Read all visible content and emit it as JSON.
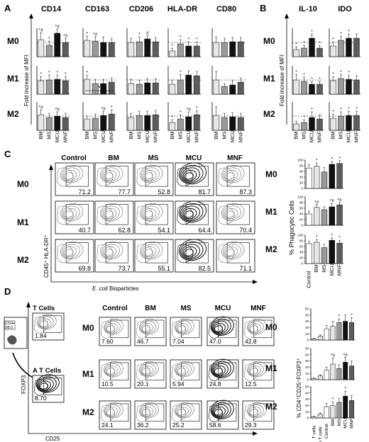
{
  "panel_letters": {
    "A": "A",
    "B": "B",
    "C": "C",
    "D": "D"
  },
  "colors": {
    "bar_light": "#e6e6e6",
    "bar_mid": "#9a9a9a",
    "bar_dark": "#4a4a4a",
    "bar_black": "#111111",
    "bar_dgray": "#5c5c5c",
    "axis": "#000000",
    "flow": "#333333"
  },
  "conditions": [
    "M0",
    "M1",
    "M2"
  ],
  "groups_AB": [
    "BM",
    "MS",
    "MCU",
    "MNF"
  ],
  "panelA": {
    "ylabel": "Fold increase of MFI",
    "markers": [
      "CD14",
      "CD163",
      "CD206",
      "HLA-DR",
      "CD80"
    ],
    "chart_data": {
      "type": "bar",
      "categories": [
        "BM",
        "MS",
        "MCU",
        "MNF"
      ],
      "ylim": [
        0,
        2
      ],
      "series": [
        {
          "marker": "CD14",
          "condition": "M0",
          "values": [
            1.2,
            0.8,
            1.65,
            1.0
          ],
          "errors": [
            0.5,
            0.3,
            0.3,
            0.3
          ],
          "annotations": [
            "*#",
            "*",
            "*#",
            "*#"
          ]
        },
        {
          "marker": "CD163",
          "condition": "M0",
          "values": [
            1.15,
            1.1,
            1.0,
            1.0
          ],
          "errors": [
            0.3,
            0.3,
            0.4,
            0.3
          ],
          "annotations": [
            "*",
            "*#",
            "",
            ""
          ]
        },
        {
          "marker": "CD206",
          "condition": "M0",
          "values": [
            1.0,
            1.05,
            1.25,
            1.05
          ],
          "errors": [
            0.3,
            0.35,
            0.25,
            0.3
          ],
          "annotations": [
            "",
            "*",
            "#",
            ""
          ]
        },
        {
          "marker": "HLA-DR",
          "condition": "M0",
          "values": [
            0.4,
            0.9,
            0.75,
            0.75
          ],
          "errors": [
            0.2,
            0.3,
            0.3,
            0.3
          ],
          "annotations": [
            "*",
            "*",
            "*",
            "*"
          ]
        },
        {
          "marker": "CD80",
          "condition": "M0",
          "values": [
            1.0,
            1.0,
            1.05,
            1.05
          ],
          "errors": [
            0.4,
            0.3,
            0.3,
            0.3
          ],
          "annotations": [
            "",
            "",
            "",
            ""
          ]
        },
        {
          "marker": "CD14",
          "condition": "M1",
          "values": [
            0.95,
            1.0,
            1.05,
            0.95
          ],
          "errors": [
            0.3,
            0.35,
            0.3,
            0.3
          ],
          "annotations": [
            "*",
            "*",
            "*",
            "*"
          ]
        },
        {
          "marker": "CD163",
          "condition": "M1",
          "values": [
            1.05,
            0.75,
            0.75,
            0.85
          ],
          "errors": [
            0.3,
            0.3,
            0.3,
            0.3
          ],
          "annotations": [
            "*",
            "",
            "",
            ""
          ]
        },
        {
          "marker": "CD206",
          "condition": "M1",
          "values": [
            0.75,
            0.7,
            0.8,
            0.8
          ],
          "errors": [
            0.3,
            0.3,
            0.3,
            0.3
          ],
          "annotations": [
            "",
            "",
            "",
            ""
          ]
        },
        {
          "marker": "HLA-DR",
          "condition": "M1",
          "values": [
            0.7,
            1.0,
            1.35,
            1.3
          ],
          "errors": [
            0.3,
            0.4,
            0.3,
            0.3
          ],
          "annotations": [
            "",
            "*",
            "",
            ""
          ]
        },
        {
          "marker": "CD80",
          "condition": "M1",
          "values": [
            1.0,
            0.55,
            0.65,
            0.85
          ],
          "errors": [
            0.6,
            0.2,
            0.3,
            0.3
          ],
          "annotations": [
            "",
            "",
            "",
            ""
          ]
        },
        {
          "marker": "CD14",
          "condition": "M2",
          "values": [
            1.1,
            0.9,
            1.0,
            0.9
          ],
          "errors": [
            0.35,
            0.3,
            0.3,
            0.3
          ],
          "annotations": [
            "*#",
            "",
            "*#",
            ""
          ]
        },
        {
          "marker": "CD163",
          "condition": "M2",
          "values": [
            0.8,
            0.85,
            1.05,
            1.15
          ],
          "errors": [
            0.2,
            0.3,
            0.3,
            0.3
          ],
          "annotations": [
            "",
            "",
            "*#",
            "*"
          ]
        },
        {
          "marker": "CD206",
          "condition": "M2",
          "values": [
            0.9,
            1.05,
            1.05,
            1.1
          ],
          "errors": [
            0.3,
            0.3,
            0.3,
            0.3
          ],
          "annotations": [
            "",
            "",
            "",
            ""
          ]
        },
        {
          "marker": "HLA-DR",
          "condition": "M2",
          "values": [
            0.55,
            0.8,
            0.95,
            1.1
          ],
          "errors": [
            0.2,
            0.3,
            0.35,
            0.3
          ],
          "annotations": [
            "*",
            "*",
            "*#",
            "*"
          ]
        },
        {
          "marker": "CD80",
          "condition": "M2",
          "values": [
            1.05,
            0.9,
            0.95,
            0.9
          ],
          "errors": [
            0.6,
            0.3,
            0.3,
            0.3
          ],
          "annotations": [
            "",
            "",
            "",
            ""
          ]
        }
      ]
    }
  },
  "panelB": {
    "ylabel": "Fold increase of MFI",
    "markers": [
      "IL-10",
      "IDO"
    ],
    "chart_data": {
      "type": "bar",
      "categories": [
        "BM",
        "MS",
        "MCU",
        "MNF"
      ],
      "ylim": [
        0,
        2
      ],
      "series": [
        {
          "marker": "IL-10",
          "condition": "M0",
          "values": [
            0.5,
            0.6,
            1.3,
            0.6
          ],
          "errors": [
            0.2,
            0.2,
            0.3,
            0.2
          ],
          "annotations": [
            "*",
            "*",
            "*",
            "*"
          ]
        },
        {
          "marker": "IDO",
          "condition": "M0",
          "values": [
            0.75,
            1.15,
            1.3,
            1.3
          ],
          "errors": [
            0.3,
            0.3,
            0.3,
            0.3
          ],
          "annotations": [
            "*",
            "*",
            "*",
            ""
          ]
        },
        {
          "marker": "IL-10",
          "condition": "M1",
          "values": [
            1.0,
            0.9,
            0.7,
            0.7
          ],
          "errors": [
            0.4,
            0.3,
            0.2,
            0.2
          ],
          "annotations": [
            "*",
            "*",
            "*",
            "*"
          ]
        },
        {
          "marker": "IDO",
          "condition": "M1",
          "values": [
            0.95,
            1.1,
            1.05,
            1.0
          ],
          "errors": [
            0.3,
            0.3,
            0.3,
            0.3
          ],
          "annotations": [
            "*",
            "*",
            "*",
            ""
          ]
        },
        {
          "marker": "IL-10",
          "condition": "M2",
          "values": [
            0.45,
            0.55,
            0.9,
            0.8
          ],
          "errors": [
            0.2,
            0.2,
            0.4,
            0.3
          ],
          "annotations": [
            "",
            "*",
            "*",
            ""
          ]
        },
        {
          "marker": "IDO",
          "condition": "M2",
          "values": [
            0.85,
            1.0,
            1.05,
            1.05
          ],
          "errors": [
            0.3,
            0.3,
            0.3,
            0.3
          ],
          "annotations": [
            "*",
            "*",
            "*",
            "*"
          ]
        }
      ]
    }
  },
  "panelC": {
    "columns": [
      "Control",
      "BM",
      "MS",
      "MCU",
      "MNF"
    ],
    "percentages": [
      [
        "71.2",
        "77.7",
        "52.8",
        "81.7",
        "87.3"
      ],
      [
        "40.7",
        "62.8",
        "54.1",
        "64.4",
        "70.4"
      ],
      [
        "69.8",
        "73.7",
        "55.1",
        "82.5",
        "71.1"
      ]
    ],
    "y_axis_label": "CD45⁺ HLA-DR⁺",
    "x_axis_label_italic": "E. coli",
    "x_axis_label_rest": " Bioparticles",
    "bar_ylabel": "% Phagocytic Cells",
    "bar_xcats": [
      "Control",
      "BM",
      "MS",
      "MCU",
      "MNF"
    ],
    "chart_data": {
      "type": "bar",
      "categories": [
        "Control",
        "BM",
        "MS",
        "MCU",
        "MNF"
      ],
      "ylim": [
        0,
        100
      ],
      "yticks": [
        0,
        20,
        40,
        60,
        80,
        100
      ],
      "series": [
        {
          "condition": "M0",
          "values": [
            72,
            78,
            58,
            85,
            88
          ],
          "errors": [
            12,
            12,
            15,
            10,
            10
          ],
          "annotations": [
            "",
            "*",
            "",
            "*",
            "*"
          ]
        },
        {
          "condition": "M1",
          "values": [
            40,
            63,
            55,
            65,
            72
          ],
          "errors": [
            10,
            10,
            10,
            12,
            8
          ],
          "annotations": [
            "",
            "*#",
            "",
            "*#",
            "*#"
          ]
        },
        {
          "condition": "M2",
          "values": [
            70,
            75,
            56,
            82,
            72
          ],
          "errors": [
            8,
            10,
            12,
            8,
            10
          ],
          "annotations": [
            "",
            "*",
            "",
            "*",
            "*"
          ]
        }
      ]
    }
  },
  "panelD": {
    "gate_label": "CD4+",
    "gate_value": "98.0",
    "t_cells_label": "T Cells",
    "t_cells_value": "1.84",
    "at_cells_label": "A T Cells",
    "at_cells_value": "8.70",
    "columns": [
      "Control",
      "BM",
      "MS",
      "MCU",
      "MNF"
    ],
    "percentages": [
      [
        "7.60",
        "46.7",
        "7.04",
        "47.0",
        "42.8"
      ],
      [
        "10.5",
        "20.1",
        "5.94",
        "24.8",
        "12.5"
      ],
      [
        "24.1",
        "36.2",
        "25.2",
        "58.6",
        "29.3"
      ]
    ],
    "y_axis_label": "FOXP3",
    "x_axis_label": "CD25",
    "bar_ylabel": "% CD4⁺CD25⁺FOXP3⁺",
    "bar_xcats": [
      "T cells",
      "A T cells",
      "Control",
      "BM",
      "MS",
      "MCU",
      "MNF"
    ],
    "chart_data": {
      "type": "bar",
      "categories": [
        "T cells",
        "A T cells",
        "Control",
        "BM",
        "MS",
        "MCU",
        "MNF"
      ],
      "ylim": [
        0,
        50
      ],
      "yticks": [
        0,
        10,
        20,
        30,
        40,
        50
      ],
      "series": [
        {
          "condition": "M0",
          "values": [
            2,
            6,
            18,
            22,
            28,
            30,
            28
          ],
          "errors": [
            1,
            2,
            5,
            8,
            6,
            10,
            8
          ],
          "annotations": [
            "",
            "",
            "",
            "",
            "*",
            "",
            "*"
          ]
        },
        {
          "condition": "M1",
          "values": [
            2,
            6,
            15,
            25,
            18,
            28,
            22
          ],
          "errors": [
            1,
            2,
            5,
            10,
            6,
            8,
            8
          ],
          "annotations": [
            "",
            "",
            "",
            "*#",
            "",
            "*#",
            ""
          ]
        },
        {
          "condition": "M2",
          "values": [
            2,
            6,
            18,
            20,
            25,
            35,
            28
          ],
          "errors": [
            1,
            2,
            5,
            6,
            6,
            8,
            8
          ],
          "annotations": [
            "",
            "",
            "",
            "*",
            "",
            "*",
            ""
          ]
        }
      ]
    }
  }
}
